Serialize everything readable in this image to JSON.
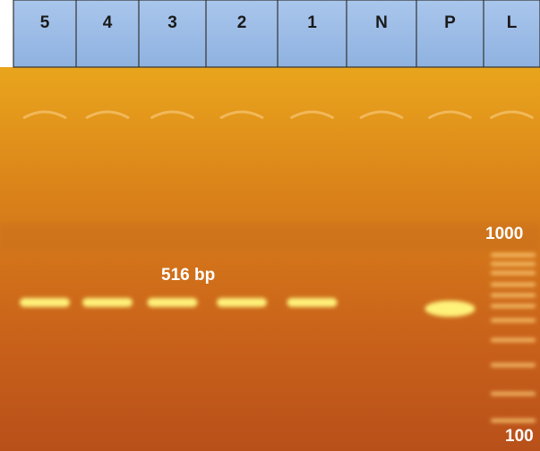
{
  "lanes": [
    "5",
    "4",
    "3",
    "2",
    "1",
    "N",
    "P",
    "L"
  ],
  "annotations": {
    "product_size": "516 bp",
    "ladder_top": "1000",
    "ladder_bottom": "100"
  }
}
